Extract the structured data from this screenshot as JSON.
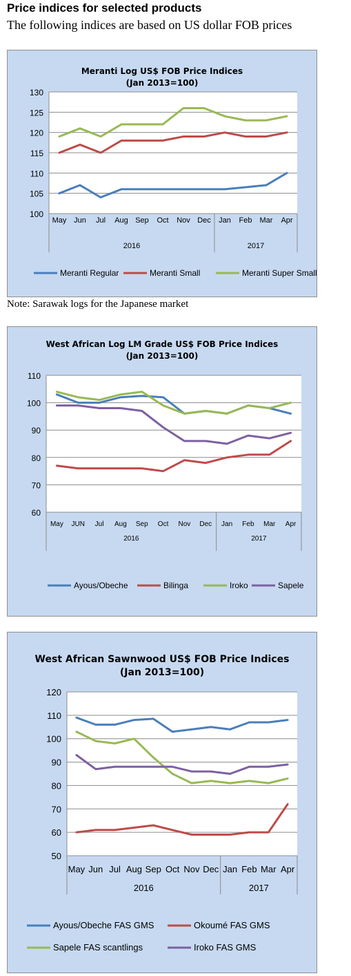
{
  "page": {
    "heading": "Price indices for selected products",
    "subheading": "The following indices are based on US dollar FOB prices",
    "note": "Note: Sarawak logs for the Japanese market"
  },
  "chart_data": [
    {
      "type": "line",
      "title": "Meranti Log US$ FOB Price Indices",
      "subtitle": "(Jan 2013=100)",
      "categories": [
        "May",
        "Jun",
        "Jul",
        "Aug",
        "Sep",
        "Oct",
        "Nov",
        "Dec",
        "Jan",
        "Feb",
        "Mar",
        "Apr"
      ],
      "year_groups": [
        {
          "label": "2016",
          "count": 8
        },
        {
          "label": "2017",
          "count": 4
        }
      ],
      "ylim": [
        100,
        130
      ],
      "yticks": [
        100,
        105,
        110,
        115,
        120,
        125,
        130
      ],
      "grid": true,
      "legend": "bottom",
      "series": [
        {
          "name": "Meranti Regular",
          "color": "#4a7ebb",
          "values": [
            105,
            107,
            104,
            106,
            106,
            106,
            106,
            106,
            106,
            106.5,
            107,
            110
          ]
        },
        {
          "name": "Meranti Small",
          "color": "#be4b48",
          "values": [
            115,
            117,
            115,
            118,
            118,
            118,
            119,
            119,
            120,
            119,
            119,
            120
          ]
        },
        {
          "name": "Meranti Super Small",
          "color": "#98b954",
          "values": [
            119,
            121,
            119,
            122,
            122,
            122,
            126,
            126,
            124,
            123,
            123,
            124
          ]
        }
      ]
    },
    {
      "type": "line",
      "title": "West African Log LM Grade US$ FOB Price Indices",
      "subtitle": "(Jan 2013=100)",
      "categories": [
        "May",
        "JUN",
        "Jul",
        "Aug",
        "Sep",
        "Oct",
        "Nov",
        "Dec",
        "Jan",
        "Feb",
        "Mar",
        "Apr"
      ],
      "year_groups": [
        {
          "label": "2016",
          "count": 8
        },
        {
          "label": "2017",
          "count": 4
        }
      ],
      "ylim": [
        60,
        110
      ],
      "yticks": [
        60,
        70,
        80,
        90,
        100,
        110
      ],
      "grid": true,
      "legend": "bottom",
      "series": [
        {
          "name": "Ayous/Obeche",
          "color": "#4a7ebb",
          "values": [
            103,
            100,
            100,
            102,
            102.5,
            102,
            96,
            97,
            96,
            99,
            98,
            96
          ]
        },
        {
          "name": "Bilinga",
          "color": "#be4b48",
          "values": [
            77,
            76,
            76,
            76,
            76,
            75,
            79,
            78,
            80,
            81,
            81,
            86
          ]
        },
        {
          "name": "Iroko",
          "color": "#98b954",
          "values": [
            104,
            102,
            101,
            103,
            104,
            99,
            96,
            97,
            96,
            99,
            98,
            100
          ]
        },
        {
          "name": "Sapele",
          "color": "#7d60a0",
          "values": [
            99,
            99,
            98,
            98,
            97,
            91,
            86,
            86,
            85,
            88,
            87,
            89
          ]
        }
      ]
    },
    {
      "type": "line",
      "title": "West African Sawnwood US$ FOB Price Indices",
      "subtitle": "(Jan 2013=100)",
      "categories": [
        "May",
        "Jun",
        "Jul",
        "Aug",
        "Sep",
        "Oct",
        "Nov",
        "Dec",
        "Jan",
        "Feb",
        "Mar",
        "Apr"
      ],
      "year_groups": [
        {
          "label": "2016",
          "count": 8
        },
        {
          "label": "2017",
          "count": 4
        }
      ],
      "ylim": [
        50,
        120
      ],
      "yticks": [
        50,
        60,
        70,
        80,
        90,
        100,
        110,
        120
      ],
      "grid": true,
      "legend": "bottom",
      "series": [
        {
          "name": "Ayous/Obeche  FAS GMS",
          "color": "#4a7ebb",
          "values": [
            109,
            106,
            106,
            108,
            108.5,
            103,
            104,
            105,
            104,
            107,
            107,
            108
          ]
        },
        {
          "name": "Okoumé  FAS GMS",
          "color": "#be4b48",
          "values": [
            60,
            61,
            61,
            62,
            63,
            61,
            59,
            59,
            59,
            60,
            60,
            72
          ]
        },
        {
          "name": "Sapele FAS scantlings",
          "color": "#98b954",
          "values": [
            103,
            99,
            98,
            100,
            92,
            85,
            81,
            82,
            81,
            82,
            81,
            83
          ]
        },
        {
          "name": "Iroko FAS GMS",
          "color": "#7d60a0",
          "values": [
            93,
            87,
            88,
            88,
            88,
            88,
            86,
            86,
            85,
            88,
            88,
            89
          ]
        }
      ]
    }
  ]
}
